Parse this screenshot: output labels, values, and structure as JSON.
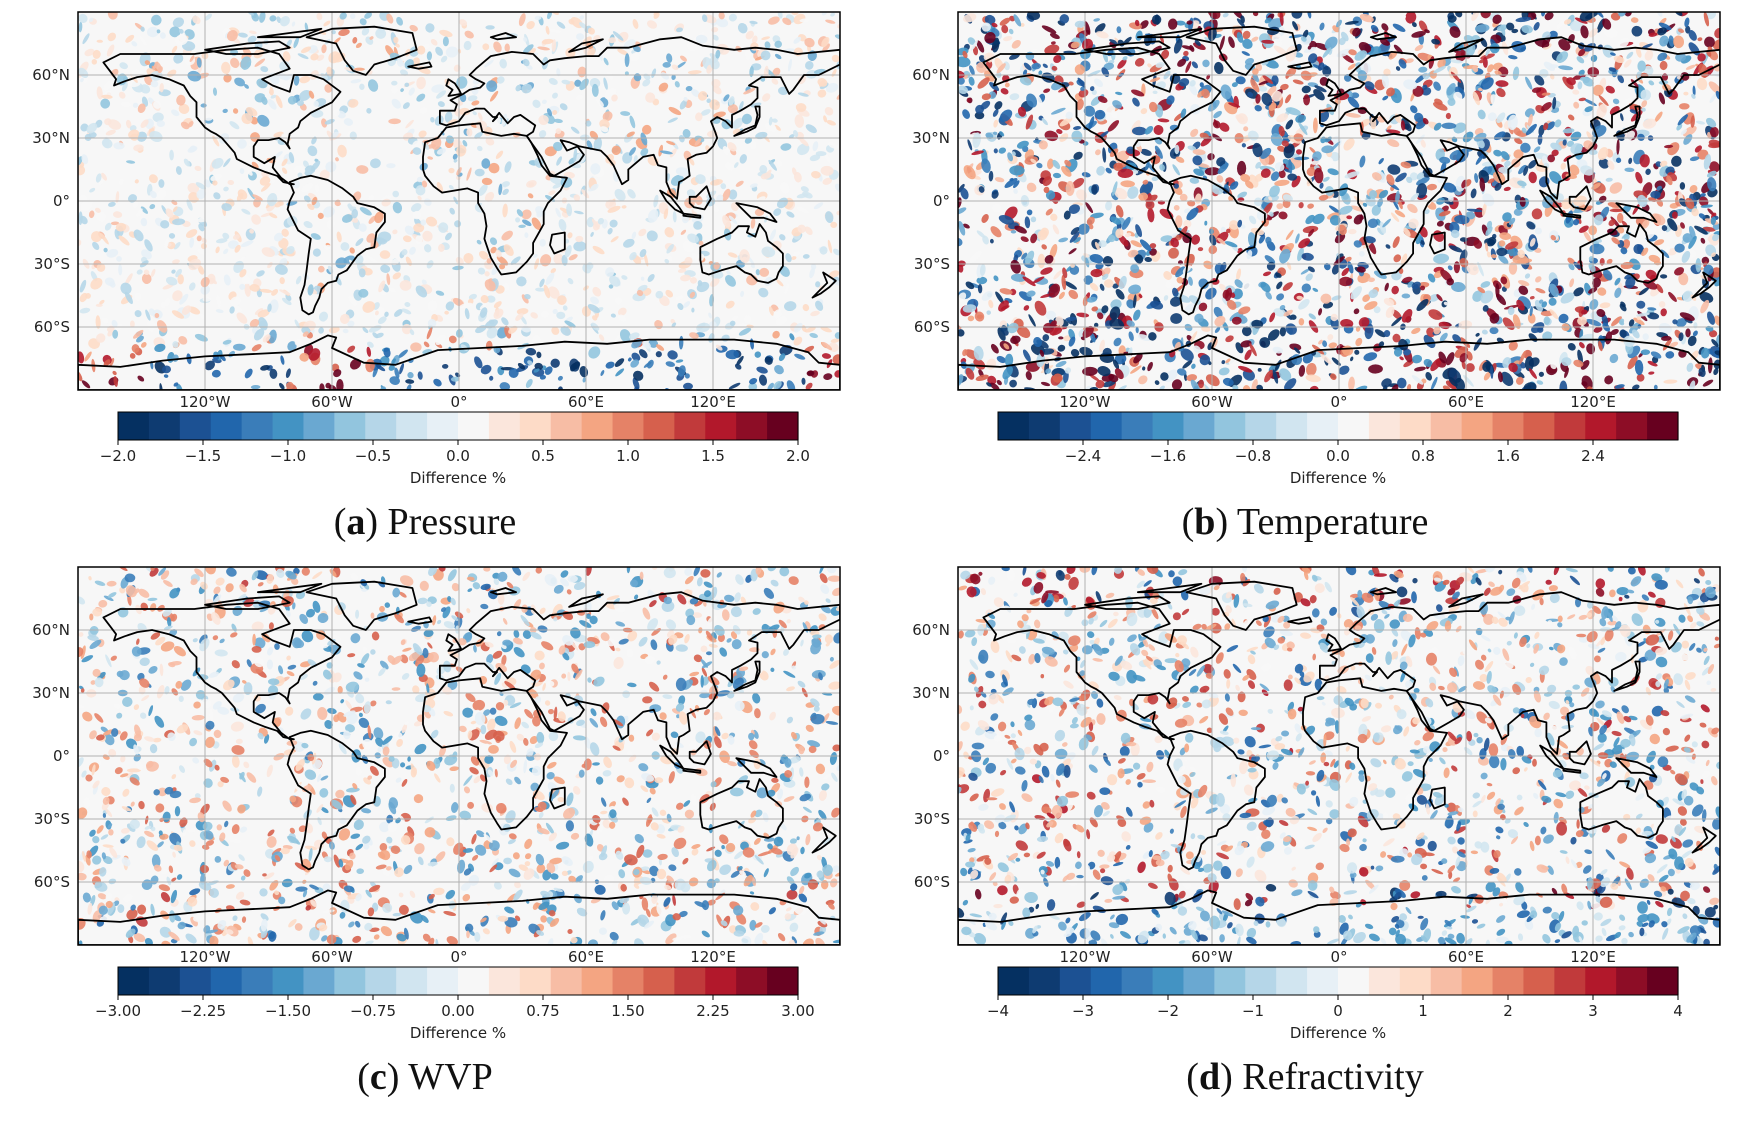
{
  "panels": [
    {
      "id": "a",
      "letter": "a",
      "title": "Pressure",
      "scale": 2.0,
      "land_noise": 0.45,
      "ocean_noise": 0.3,
      "antarctic_boost": 1.7,
      "colorbar": {
        "ticks": [
          "−2.0",
          "−1.5",
          "−1.0",
          "−0.5",
          "0.0",
          "0.5",
          "1.0",
          "1.5",
          "2.0"
        ],
        "tick_values": [
          -2.0,
          -1.5,
          -1.0,
          -0.5,
          0.0,
          0.5,
          1.0,
          1.5,
          2.0
        ],
        "range": [
          -2.0,
          2.0
        ],
        "label": "Difference %"
      }
    },
    {
      "id": "b",
      "letter": "b",
      "title": "Temperature",
      "scale": 3.2,
      "land_noise": 0.9,
      "ocean_noise": 1.0,
      "antarctic_boost": 1.3,
      "colorbar": {
        "ticks": [
          "−2.4",
          "−1.6",
          "−0.8",
          "0.0",
          "0.8",
          "1.6",
          "2.4"
        ],
        "tick_values": [
          -2.4,
          -1.6,
          -0.8,
          0.0,
          0.8,
          1.6,
          2.4
        ],
        "range": [
          -3.2,
          3.2
        ],
        "label": "Difference %"
      }
    },
    {
      "id": "c",
      "letter": "c",
      "title": "WVP",
      "scale": 3.0,
      "land_noise": 0.6,
      "ocean_noise": 0.6,
      "antarctic_boost": 1.1,
      "colorbar": {
        "ticks": [
          "−3.00",
          "−2.25",
          "−1.50",
          "−0.75",
          "0.00",
          "0.75",
          "1.50",
          "2.25",
          "3.00"
        ],
        "tick_values": [
          -3.0,
          -2.25,
          -1.5,
          -0.75,
          0.0,
          0.75,
          1.5,
          2.25,
          3.0
        ],
        "range": [
          -3.0,
          3.0
        ],
        "label": "Difference %"
      }
    },
    {
      "id": "d",
      "letter": "d",
      "title": "Refractivity",
      "scale": 4.0,
      "land_noise": 0.55,
      "ocean_noise": 0.75,
      "antarctic_boost": 1.4,
      "colorbar": {
        "ticks": [
          "−4",
          "−3",
          "−2",
          "−1",
          "0",
          "1",
          "2",
          "3",
          "4"
        ],
        "tick_values": [
          -4,
          -3,
          -2,
          -1,
          0,
          1,
          2,
          3,
          4
        ],
        "range": [
          -4,
          4
        ],
        "label": "Difference %"
      }
    }
  ],
  "lat_ticks": [
    "60°N",
    "30°N",
    "0°",
    "30°S",
    "60°S"
  ],
  "lat_values": [
    60,
    30,
    0,
    -30,
    -60
  ],
  "lon_ticks": [
    "120°W",
    "60°W",
    "0°",
    "60°E",
    "120°E"
  ],
  "lon_values": [
    -120,
    -60,
    0,
    60,
    120
  ],
  "map_extent": {
    "lon": [
      -180,
      180
    ],
    "lat": [
      -90,
      90
    ]
  },
  "colors": {
    "neg_dark": "#053061",
    "neg_mid": "#4393c3",
    "neg_light": "#d1e5f0",
    "zero": "#f7f7f7",
    "pos_light": "#fddbc7",
    "pos_mid": "#d6604d",
    "pos_dark": "#67001f",
    "coast": "#000000",
    "grid": "#b0b0b0"
  }
}
